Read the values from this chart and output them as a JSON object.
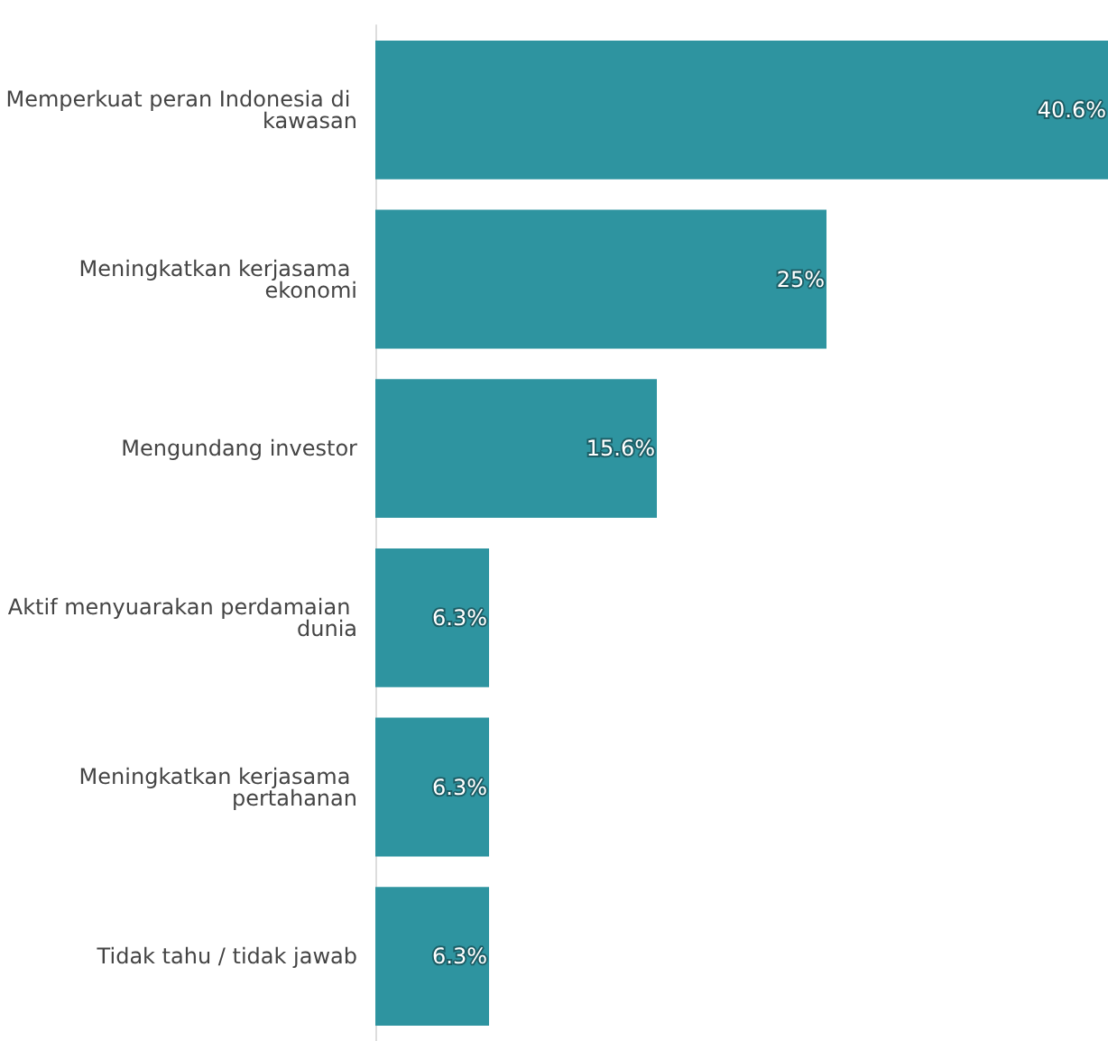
{
  "chart_data": {
    "type": "bar",
    "orientation": "horizontal",
    "categories": [
      "Memperkuat peran Indonesia di kawasan",
      "Meningkatkan kerjasama ekonomi",
      "Mengundang investor",
      "Aktif menyuarakan perdamaian dunia",
      "Meningkatkan kerjasama pertahanan",
      "Tidak tahu / tidak jawab"
    ],
    "values": [
      40.6,
      25,
      15.6,
      6.3,
      6.3,
      6.3
    ],
    "value_labels": [
      "40.6%",
      "25%",
      "15.6%",
      "6.3%",
      "6.3%",
      "6.3%"
    ],
    "color": "#2e94a0"
  }
}
